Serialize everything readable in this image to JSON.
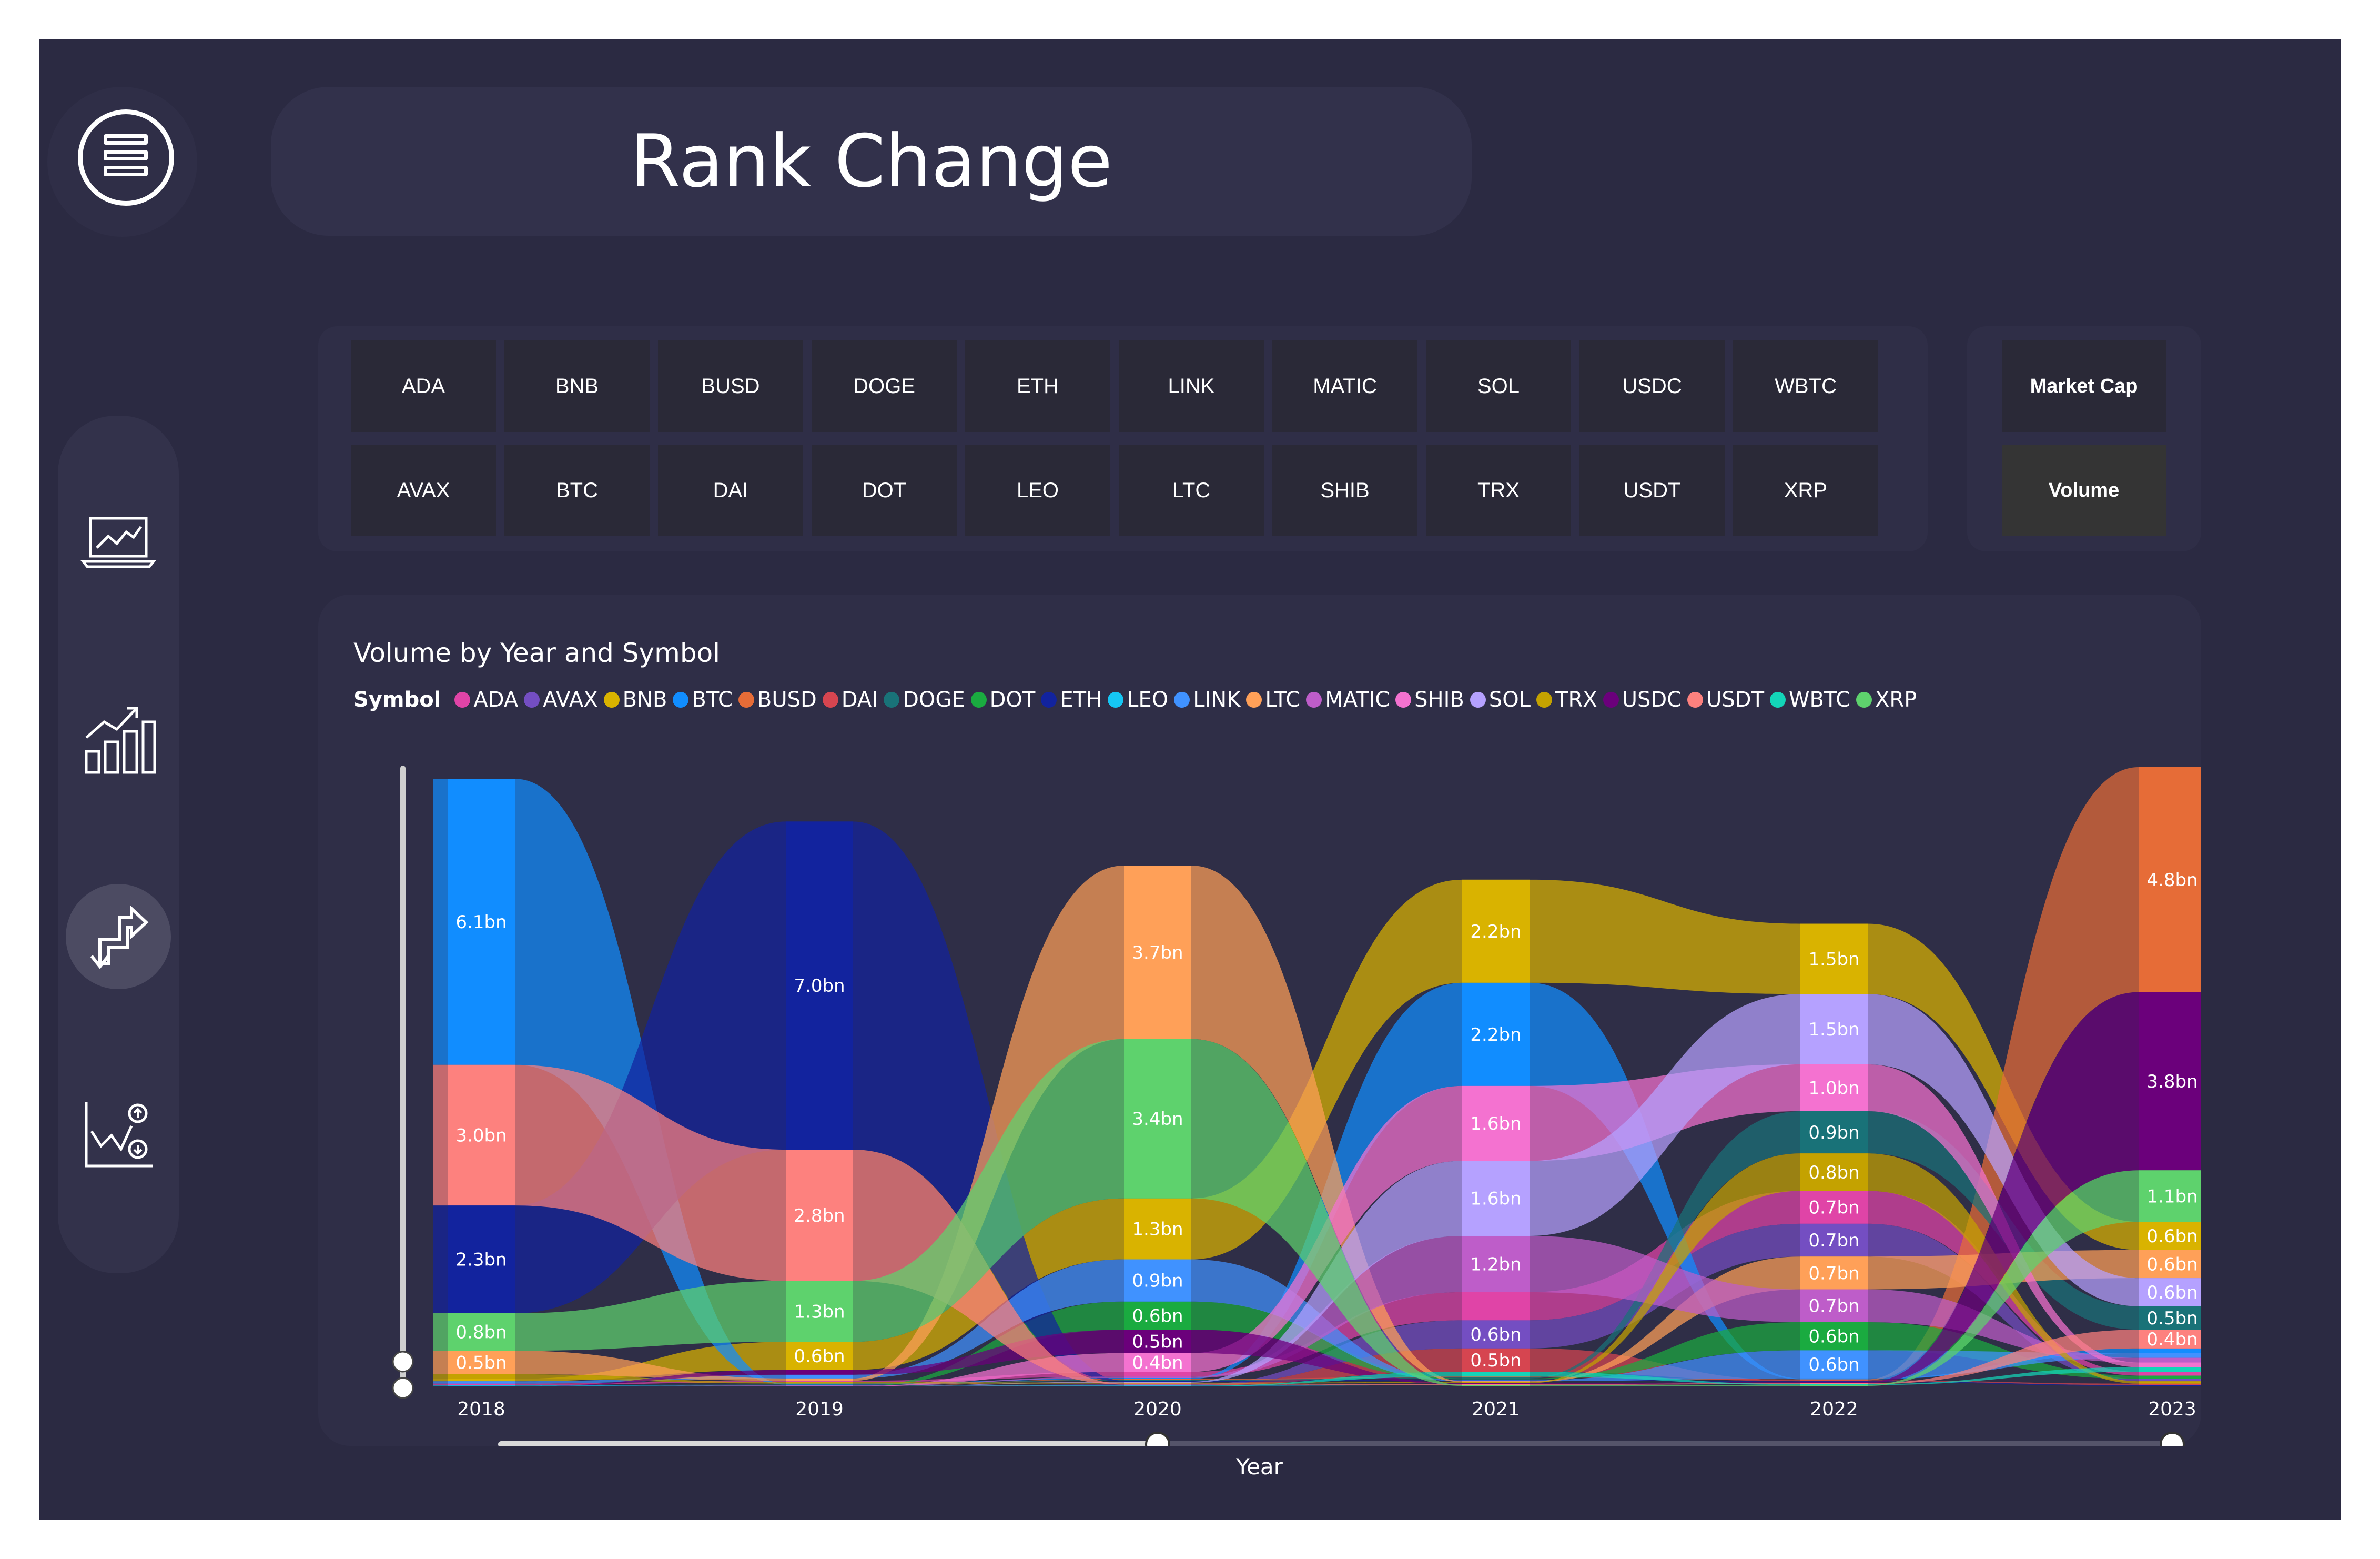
{
  "page": {
    "title": "Rank Change",
    "background": "#2b2a42",
    "nav": {
      "items": [
        {
          "name": "laptop-chart-icon",
          "active": false
        },
        {
          "name": "bar-growth-chart-icon",
          "active": false
        },
        {
          "name": "swap-arrows-icon",
          "active": true
        },
        {
          "name": "scatter-updown-icon",
          "active": false
        }
      ]
    }
  },
  "slicer": {
    "symbols": [
      "ADA",
      "BNB",
      "BUSD",
      "DOGE",
      "ETH",
      "LINK",
      "MATIC",
      "SOL",
      "USDC",
      "WBTC",
      "AVAX",
      "BTC",
      "DAI",
      "DOT",
      "LEO",
      "LTC",
      "SHIB",
      "TRX",
      "USDT",
      "XRP"
    ],
    "metrics": [
      {
        "label": "Market Cap",
        "selected": false
      },
      {
        "label": "Volume",
        "selected": true
      }
    ]
  },
  "chart_data": {
    "type": "ribbon",
    "title": "Volume by Year and Symbol",
    "legend_title": "Symbol",
    "legend_position": "top-left",
    "xlabel": "Year",
    "categories": [
      "2018",
      "2019",
      "2020",
      "2021",
      "2022",
      "2023"
    ],
    "colors": {
      "ADA": "#e044a7",
      "AVAX": "#744ec2",
      "BNB": "#d9b300",
      "BTC": "#118dff",
      "BUSD": "#e66c37",
      "DAI": "#d64550",
      "DOGE": "#197278",
      "DOT": "#1aab40",
      "ETH": "#12239e",
      "LEO": "#15c6f4",
      "LINK": "#4092ff",
      "LTC": "#ffa058",
      "MATIC": "#be5dc9",
      "SHIB": "#f472d0",
      "SOL": "#b5a1ff",
      "TRX": "#c4a200",
      "USDC": "#6b007b",
      "USDT": "#fd817e",
      "WBTC": "#13d5b8",
      "XRP": "#5ed26d"
    },
    "series": [
      {
        "name": "ADA",
        "values": [
          0.03,
          0.03,
          0.1,
          0.6,
          0.7,
          0.08
        ]
      },
      {
        "name": "AVAX",
        "values": [
          0,
          0,
          0.01,
          0.6,
          0.7,
          0.05
        ]
      },
      {
        "name": "BNB",
        "values": [
          0.05,
          0.6,
          1.3,
          2.2,
          1.5,
          0.6
        ]
      },
      {
        "name": "BTC",
        "values": [
          6.1,
          0.02,
          0.02,
          2.2,
          0.02,
          0.1
        ]
      },
      {
        "name": "BUSD",
        "values": [
          0,
          0,
          0.02,
          0.02,
          0.02,
          4.8
        ]
      },
      {
        "name": "DAI",
        "values": [
          0,
          0,
          0.01,
          0.5,
          0.02,
          0.03
        ]
      },
      {
        "name": "DOGE",
        "values": [
          0.01,
          0.01,
          0.02,
          0.02,
          0.9,
          0.5
        ]
      },
      {
        "name": "DOT",
        "values": [
          0,
          0,
          0.6,
          0.02,
          0.6,
          0.07
        ]
      },
      {
        "name": "ETH",
        "values": [
          2.3,
          7.0,
          0.02,
          0.02,
          0.02,
          0.02
        ]
      },
      {
        "name": "LEO",
        "values": [
          0.01,
          0.01,
          0.01,
          0.01,
          0.01,
          0.01
        ]
      },
      {
        "name": "LINK",
        "values": [
          0.05,
          0.08,
          0.9,
          0.02,
          0.6,
          0.1
        ]
      },
      {
        "name": "LTC",
        "values": [
          0.5,
          0.05,
          3.7,
          0.02,
          0.7,
          0.6
        ]
      },
      {
        "name": "MATIC",
        "values": [
          0,
          0.01,
          0.03,
          1.2,
          0.7,
          0.1
        ]
      },
      {
        "name": "SHIB",
        "values": [
          0,
          0,
          0.4,
          1.6,
          1.0,
          0.1
        ]
      },
      {
        "name": "SOL",
        "values": [
          0,
          0,
          0.02,
          1.6,
          1.5,
          0.6
        ]
      },
      {
        "name": "TRX",
        "values": [
          0.1,
          0.03,
          0.02,
          0.02,
          0.8,
          0.05
        ]
      },
      {
        "name": "USDC",
        "values": [
          0,
          0.1,
          0.5,
          0.02,
          0.02,
          3.8
        ]
      },
      {
        "name": "USDT",
        "values": [
          3.0,
          2.8,
          0.02,
          0.02,
          0.02,
          0.4
        ]
      },
      {
        "name": "WBTC",
        "values": [
          0.01,
          0.01,
          0.01,
          0.1,
          0.02,
          0.1
        ]
      },
      {
        "name": "XRP",
        "values": [
          0.8,
          1.3,
          3.4,
          0.02,
          0.02,
          1.1
        ]
      }
    ],
    "data_labels": [
      {
        "category": "2018",
        "symbol": "BTC",
        "text": "6.1bn"
      },
      {
        "category": "2018",
        "symbol": "USDT",
        "text": "3.0bn"
      },
      {
        "category": "2018",
        "symbol": "ETH",
        "text": "2.3bn"
      },
      {
        "category": "2018",
        "symbol": "XRP",
        "text": "0.8bn"
      },
      {
        "category": "2018",
        "symbol": "LTC",
        "text": "0.5bn"
      },
      {
        "category": "2019",
        "symbol": "ETH",
        "text": "7.0bn"
      },
      {
        "category": "2019",
        "symbol": "USDT",
        "text": "2.8bn"
      },
      {
        "category": "2019",
        "symbol": "XRP",
        "text": "1.3bn"
      },
      {
        "category": "2019",
        "symbol": "BNB",
        "text": "0.6bn"
      },
      {
        "category": "2020",
        "symbol": "LTC",
        "text": "3.7bn"
      },
      {
        "category": "2020",
        "symbol": "XRP",
        "text": "3.4bn"
      },
      {
        "category": "2020",
        "symbol": "BNB",
        "text": "1.3bn"
      },
      {
        "category": "2020",
        "symbol": "LINK",
        "text": "0.9bn"
      },
      {
        "category": "2020",
        "symbol": "DOT",
        "text": "0.6bn"
      },
      {
        "category": "2020",
        "symbol": "USDC",
        "text": "0.5bn"
      },
      {
        "category": "2020",
        "symbol": "SHIB",
        "text": "0.4bn"
      },
      {
        "category": "2021",
        "symbol": "BTC",
        "text": "2.2bn"
      },
      {
        "category": "2021",
        "symbol": "BNB",
        "text": "2.2bn"
      },
      {
        "category": "2021",
        "symbol": "SHIB",
        "text": "1.6bn"
      },
      {
        "category": "2021",
        "symbol": "SOL",
        "text": "1.6bn"
      },
      {
        "category": "2021",
        "symbol": "MATIC",
        "text": "1.2bn"
      },
      {
        "category": "2021",
        "symbol": "AVAX",
        "text": "0.6bn"
      },
      {
        "category": "2021",
        "symbol": "DAI",
        "text": "0.5bn"
      },
      {
        "category": "2022",
        "symbol": "SOL",
        "text": "1.5bn"
      },
      {
        "category": "2022",
        "symbol": "BNB",
        "text": "1.5bn"
      },
      {
        "category": "2022",
        "symbol": "SHIB",
        "text": "1.0bn"
      },
      {
        "category": "2022",
        "symbol": "DOGE",
        "text": "0.9bn"
      },
      {
        "category": "2022",
        "symbol": "TRX",
        "text": "0.8bn"
      },
      {
        "category": "2022",
        "symbol": "MATIC",
        "text": "0.7bn"
      },
      {
        "category": "2022",
        "symbol": "LTC",
        "text": "0.7bn"
      },
      {
        "category": "2022",
        "symbol": "ADA",
        "text": "0.7bn"
      },
      {
        "category": "2022",
        "symbol": "AVAX",
        "text": "0.7bn"
      },
      {
        "category": "2022",
        "symbol": "DOT",
        "text": "0.6bn"
      },
      {
        "category": "2022",
        "symbol": "LINK",
        "text": "0.6bn"
      },
      {
        "category": "2023",
        "symbol": "BUSD",
        "text": "4.8bn"
      },
      {
        "category": "2023",
        "symbol": "USDC",
        "text": "3.8bn"
      },
      {
        "category": "2023",
        "symbol": "XRP",
        "text": "1.1bn"
      },
      {
        "category": "2023",
        "symbol": "LTC",
        "text": "0.6bn"
      },
      {
        "category": "2023",
        "symbol": "BNB",
        "text": "0.6bn"
      },
      {
        "category": "2023",
        "symbol": "SOL",
        "text": "0.6bn"
      },
      {
        "category": "2023",
        "symbol": "DOGE",
        "text": "0.5bn"
      },
      {
        "category": "2023",
        "symbol": "USDT",
        "text": "0.4bn"
      }
    ],
    "x_slider": {
      "start": "2018",
      "end": "2023",
      "current": "2020"
    }
  }
}
